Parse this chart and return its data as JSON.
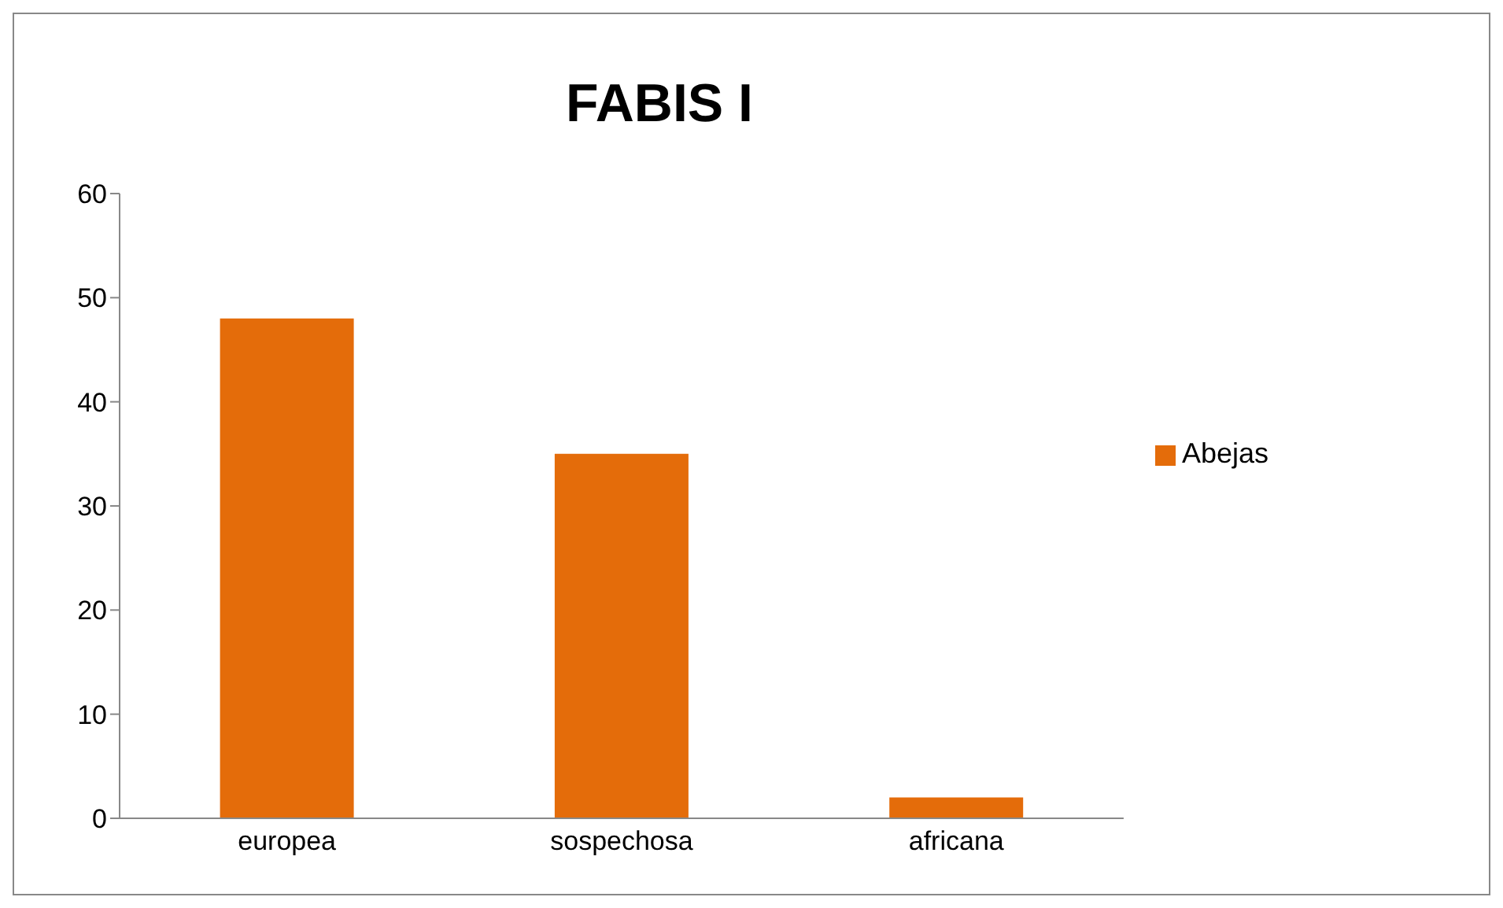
{
  "chart_data": {
    "type": "bar",
    "title": "FABIS I",
    "categories": [
      "europea",
      "sospechosa",
      "africana"
    ],
    "series": [
      {
        "name": "Abejas",
        "color": "#e46c0a",
        "values": [
          48,
          35,
          2
        ]
      }
    ],
    "ylim": [
      0,
      60
    ],
    "yticks": [
      0,
      10,
      20,
      30,
      40,
      50,
      60
    ],
    "grid": false,
    "legend": "right"
  }
}
